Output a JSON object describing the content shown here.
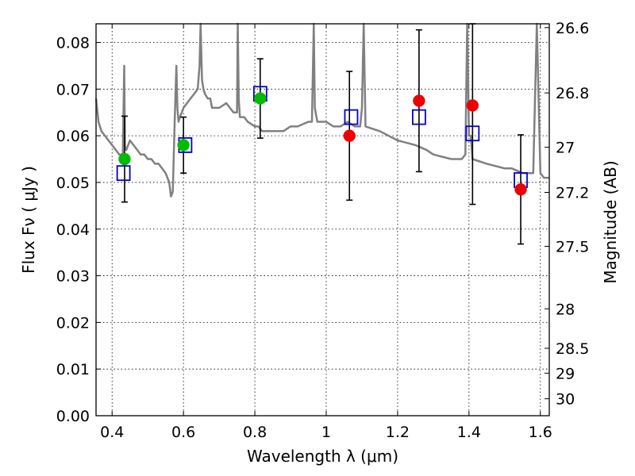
{
  "chart_data": {
    "type": "scatter",
    "xlabel": "Wavelength  λ (μm)",
    "ylabel": "Flux  Fν  ( μJy )",
    "ylabel_right": "Magnitude (AB)",
    "xlim": [
      0.355,
      1.625
    ],
    "ylim": [
      0.0,
      0.084
    ],
    "x_ticks": [
      {
        "value": 0.4,
        "label": "0.4"
      },
      {
        "value": 0.6,
        "label": "0.6"
      },
      {
        "value": 0.8,
        "label": "0.8"
      },
      {
        "value": 1.0,
        "label": "1"
      },
      {
        "value": 1.2,
        "label": "1.2"
      },
      {
        "value": 1.4,
        "label": "1.4"
      },
      {
        "value": 1.6,
        "label": "1.6"
      }
    ],
    "y_ticks": [
      {
        "value": 0.0,
        "label": "0.00"
      },
      {
        "value": 0.01,
        "label": "0.01"
      },
      {
        "value": 0.02,
        "label": "0.02"
      },
      {
        "value": 0.03,
        "label": "0.03"
      },
      {
        "value": 0.04,
        "label": "0.04"
      },
      {
        "value": 0.05,
        "label": "0.05"
      },
      {
        "value": 0.06,
        "label": "0.06"
      },
      {
        "value": 0.07,
        "label": "0.07"
      },
      {
        "value": 0.08,
        "label": "0.08"
      }
    ],
    "right_ticks": [
      {
        "mag": 26.6,
        "label": "26.6"
      },
      {
        "mag": 26.8,
        "label": "26.8"
      },
      {
        "mag": 27.0,
        "label": "27"
      },
      {
        "mag": 27.2,
        "label": "27.2"
      },
      {
        "mag": 27.5,
        "label": "27.5"
      },
      {
        "mag": 28.0,
        "label": "28"
      },
      {
        "mag": 28.5,
        "label": "28.5"
      },
      {
        "mag": 29.0,
        "label": "29"
      },
      {
        "mag": 30.0,
        "label": "30"
      }
    ],
    "grid": true,
    "model_spectrum": {
      "color": "#808080",
      "x": [
        0.355,
        0.362,
        0.37,
        0.38,
        0.39,
        0.4,
        0.41,
        0.42,
        0.43,
        0.434,
        0.436,
        0.438,
        0.44,
        0.45,
        0.46,
        0.47,
        0.48,
        0.49,
        0.5,
        0.51,
        0.52,
        0.53,
        0.54,
        0.55,
        0.56,
        0.565,
        0.57,
        0.575,
        0.58,
        0.583,
        0.586,
        0.59,
        0.6,
        0.61,
        0.62,
        0.63,
        0.64,
        0.645,
        0.648,
        0.652,
        0.656,
        0.66,
        0.668,
        0.675,
        0.68,
        0.7,
        0.72,
        0.73,
        0.74,
        0.75,
        0.752,
        0.755,
        0.758,
        0.77,
        0.78,
        0.8,
        0.81,
        0.82,
        0.83,
        0.85,
        0.87,
        0.88,
        0.9,
        0.92,
        0.95,
        0.96,
        0.965,
        0.968,
        0.975,
        0.98,
        1.0,
        1.02,
        1.04,
        1.06,
        1.08,
        1.095,
        1.1,
        1.105,
        1.11,
        1.15,
        1.2,
        1.25,
        1.28,
        1.3,
        1.35,
        1.38,
        1.39,
        1.395,
        1.4,
        1.405,
        1.41,
        1.45,
        1.5,
        1.52,
        1.55,
        1.58,
        1.59,
        1.6,
        1.61,
        1.625
      ],
      "y": [
        0.068,
        0.063,
        0.061,
        0.06,
        0.059,
        0.058,
        0.057,
        0.056,
        0.056,
        0.075,
        0.058,
        0.057,
        0.057,
        0.059,
        0.058,
        0.057,
        0.056,
        0.056,
        0.055,
        0.055,
        0.054,
        0.054,
        0.053,
        0.052,
        0.05,
        0.047,
        0.048,
        0.062,
        0.075,
        0.066,
        0.063,
        0.064,
        0.066,
        0.067,
        0.068,
        0.069,
        0.07,
        0.075,
        0.084,
        0.072,
        0.07,
        0.069,
        0.068,
        0.068,
        0.066,
        0.066,
        0.067,
        0.066,
        0.065,
        0.065,
        0.084,
        0.068,
        0.064,
        0.064,
        0.063,
        0.062,
        0.062,
        0.061,
        0.061,
        0.061,
        0.061,
        0.061,
        0.062,
        0.062,
        0.063,
        0.063,
        0.084,
        0.066,
        0.063,
        0.063,
        0.063,
        0.062,
        0.062,
        0.063,
        0.062,
        0.062,
        0.066,
        0.084,
        0.062,
        0.061,
        0.059,
        0.058,
        0.057,
        0.056,
        0.055,
        0.055,
        0.056,
        0.084,
        0.06,
        0.06,
        0.055,
        0.054,
        0.053,
        0.053,
        0.052,
        0.052,
        0.084,
        0.052,
        0.051,
        0.051
      ]
    },
    "model_photometry": {
      "marker": "open-square",
      "color": "#0000cc",
      "x": [
        0.432,
        0.605,
        0.815,
        1.07,
        1.26,
        1.41,
        1.545
      ],
      "y": [
        0.052,
        0.058,
        0.069,
        0.064,
        0.064,
        0.0605,
        0.0505
      ]
    },
    "observed_detected": {
      "marker": "filled-circle",
      "color": "#00bb00",
      "x": [
        0.435,
        0.6,
        0.815
      ],
      "y": [
        0.055,
        0.058,
        0.068
      ],
      "err": [
        0.0092,
        0.006,
        0.0085
      ]
    },
    "observed_other": {
      "marker": "filled-circle",
      "color": "#ee0000",
      "x": [
        1.065,
        1.26,
        1.41,
        1.545
      ],
      "y": [
        0.06,
        0.0675,
        0.0665,
        0.0485
      ],
      "err": [
        0.0138,
        0.0152,
        0.0212,
        0.0117
      ]
    }
  }
}
